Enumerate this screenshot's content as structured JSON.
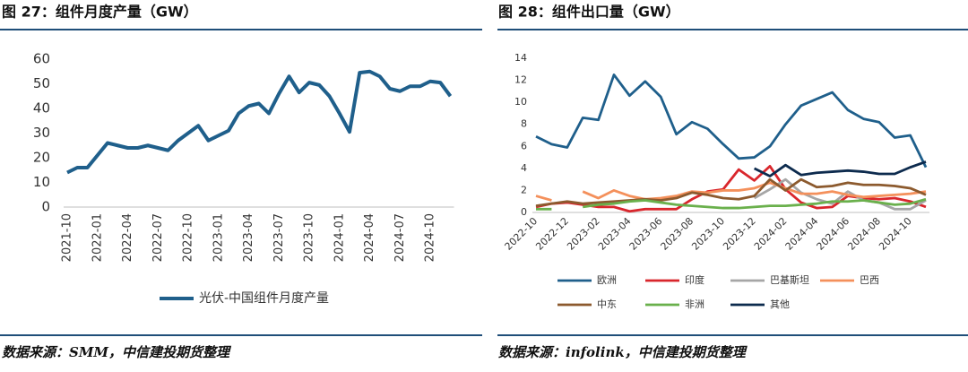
{
  "chart_data": [
    {
      "type": "line",
      "title": "图 27：组件月度产量（GW）",
      "categories": [
        "2021-10",
        null,
        null,
        "2022-01",
        null,
        null,
        "2022-04",
        null,
        null,
        "2022-07",
        null,
        null,
        "2022-10",
        null,
        null,
        "2023-01",
        null,
        null,
        "2023-04",
        null,
        null,
        "2023-07",
        null,
        null,
        "2023-10",
        null,
        null,
        "2024-01",
        null,
        null,
        "2024-04",
        null,
        null,
        "2024-07",
        null,
        null,
        "2024-10",
        null,
        null
      ],
      "series": [
        {
          "name": "光伏-中国组件月度产量",
          "color": "#1f5f8b",
          "values": [
            14,
            16,
            16,
            21,
            26,
            25,
            24,
            24,
            25,
            24,
            23,
            27,
            30,
            33,
            27,
            29,
            31,
            38,
            41,
            42,
            38,
            46,
            53,
            46.5,
            50.5,
            49.5,
            45,
            38,
            30.5,
            54.5,
            55,
            53,
            48,
            47,
            49,
            49,
            51,
            50.5,
            45
          ]
        }
      ],
      "ylim": [
        0,
        60
      ],
      "yticks": [
        0,
        10,
        20,
        30,
        40,
        50,
        60
      ],
      "grid": false,
      "legend": "bottom"
    },
    {
      "type": "line",
      "title": "图 28：组件出口量（GW）",
      "categories": [
        "2022-10",
        null,
        "2022-12",
        null,
        "2023-02",
        null,
        "2023-04",
        null,
        "2023-06",
        null,
        "2023-08",
        null,
        "2023-10",
        null,
        "2023-12",
        null,
        "2024-02",
        null,
        "2024-04",
        null,
        "2024-06",
        null,
        "2024-08",
        null,
        "2024-10",
        null
      ],
      "series": [
        {
          "name": "欧洲",
          "color": "#1f5f8b",
          "values": [
            6.9,
            6.2,
            5.9,
            8.6,
            8.4,
            12.5,
            10.6,
            11.9,
            10.5,
            7.1,
            8.2,
            7.6,
            6.2,
            4.9,
            5.0,
            6.0,
            8.0,
            9.7,
            10.3,
            10.9,
            9.3,
            8.5,
            8.2,
            6.8,
            7.0,
            4.1
          ]
        },
        {
          "name": "印度",
          "color": "#d9262c",
          "values": [
            0.5,
            0.8,
            0.9,
            0.7,
            0.5,
            0.5,
            0.1,
            0.3,
            0.3,
            0.3,
            1.2,
            1.9,
            2.1,
            3.9,
            2.9,
            4.2,
            2.1,
            0.9,
            0.4,
            0.5,
            1.5,
            1.3,
            1.2,
            1.3,
            1.0,
            0.5
          ]
        },
        {
          "name": "巴基斯坦",
          "color": "#a6a6a6",
          "values": [
            null,
            null,
            null,
            null,
            null,
            null,
            null,
            null,
            null,
            null,
            null,
            null,
            null,
            null,
            1.3,
            2.1,
            3.0,
            1.8,
            1.2,
            0.8,
            1.9,
            1.1,
            0.9,
            0.3,
            0.3,
            1.1
          ]
        },
        {
          "name": "巴西",
          "color": "#f4905b",
          "values": [
            1.5,
            1.1,
            null,
            1.9,
            1.3,
            2.0,
            1.5,
            1.2,
            1.3,
            1.5,
            1.9,
            1.8,
            2.0,
            2.0,
            2.2,
            2.7,
            2.2,
            1.7,
            1.7,
            1.9,
            1.6,
            1.4,
            1.5,
            1.6,
            1.7,
            1.9
          ]
        },
        {
          "name": "中东",
          "color": "#8c5a2e",
          "values": [
            0.6,
            0.8,
            1.0,
            0.8,
            0.9,
            1.0,
            1.1,
            1.2,
            1.1,
            1.3,
            1.8,
            1.6,
            1.3,
            1.2,
            1.5,
            3.0,
            2.0,
            3.0,
            2.3,
            2.4,
            2.7,
            2.5,
            2.5,
            2.4,
            2.2,
            1.6
          ]
        },
        {
          "name": "非洲",
          "color": "#6ab04c",
          "values": [
            0.3,
            0.3,
            null,
            0.5,
            0.7,
            0.8,
            1.0,
            1.1,
            0.9,
            0.7,
            0.6,
            0.5,
            0.4,
            0.4,
            0.5,
            0.6,
            0.6,
            0.7,
            0.8,
            1.0,
            1.0,
            1.1,
            0.9,
            0.7,
            0.8,
            1.2
          ]
        },
        {
          "name": "其他",
          "color": "#0d2b4e",
          "values": [
            null,
            null,
            null,
            null,
            null,
            null,
            null,
            null,
            null,
            null,
            null,
            null,
            null,
            null,
            4.0,
            3.3,
            4.3,
            3.4,
            3.6,
            3.7,
            3.8,
            3.7,
            3.5,
            3.5,
            4.1,
            4.6
          ]
        }
      ],
      "ylim": [
        0,
        14
      ],
      "yticks": [
        0,
        2,
        4,
        6,
        8,
        10,
        12,
        14
      ],
      "grid": false,
      "legend": "bottom"
    }
  ],
  "sources": [
    "数据来源：SMM，中信建投期货整理",
    "数据来源：infolink，中信建投期货整理"
  ]
}
